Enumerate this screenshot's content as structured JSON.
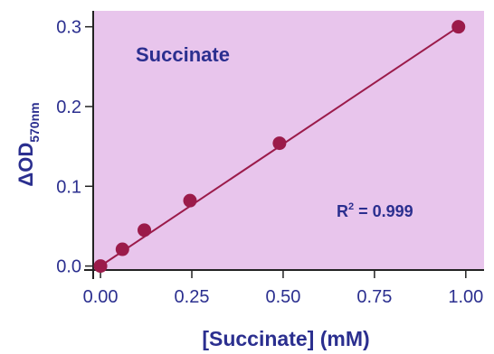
{
  "chart_data": {
    "type": "scatter",
    "title": "",
    "annotation_label": "Succinate",
    "r2_prefix": "R",
    "r2_sup": "2",
    "r2_value": " = 0.999",
    "xlabel": "[Succinate] (mM)",
    "ylabel_main": "ΔOD",
    "ylabel_sub": "570nm",
    "xlim": [
      -0.02,
      1.05
    ],
    "ylim": [
      -0.005,
      0.32
    ],
    "xticks": [
      0.0,
      0.25,
      0.5,
      0.75,
      1.0
    ],
    "xtick_labels": [
      "0.00",
      "0.25",
      "0.50",
      "0.75",
      "1.00"
    ],
    "yticks": [
      0.0,
      0.1,
      0.2,
      0.3
    ],
    "ytick_labels": [
      "0.0",
      "0.1",
      "0.2",
      "0.3"
    ],
    "points": [
      {
        "x": 0.0,
        "y": 0.0
      },
      {
        "x": 0.06,
        "y": 0.021
      },
      {
        "x": 0.12,
        "y": 0.045
      },
      {
        "x": 0.245,
        "y": 0.082
      },
      {
        "x": 0.49,
        "y": 0.154
      },
      {
        "x": 0.98,
        "y": 0.3
      }
    ],
    "fit_line": {
      "x0": 0.0,
      "y0": 0.0,
      "x1": 0.98,
      "y1": 0.3
    },
    "grid": false,
    "colors": {
      "plot_background": "#e8c5ec",
      "points": "#9b1b4a",
      "line": "#9b1b4a",
      "text": "#2b2f8f",
      "axis": "#222222"
    }
  }
}
